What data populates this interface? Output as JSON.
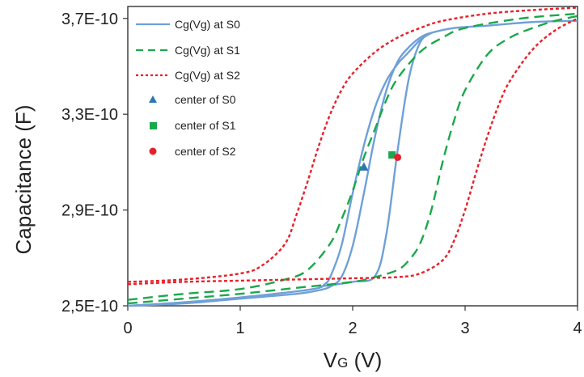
{
  "chart_data": {
    "type": "line",
    "xlabel_main": "V",
    "xlabel_sub": "G",
    "xlabel_unit": " (V)",
    "ylabel": "Capacitance (F)",
    "xlim": [
      0,
      4
    ],
    "ylim": [
      2.5e-10,
      3.75e-10
    ],
    "x_ticks": [
      {
        "value": 0,
        "label": "0"
      },
      {
        "value": 1,
        "label": "1"
      },
      {
        "value": 2,
        "label": "2"
      },
      {
        "value": 3,
        "label": "3"
      },
      {
        "value": 4,
        "label": "4"
      }
    ],
    "y_ticks": [
      {
        "value": 2.5e-10,
        "label": "2,5E-10"
      },
      {
        "value": 2.9e-10,
        "label": "2,9E-10"
      },
      {
        "value": 3.3e-10,
        "label": "3,3E-10"
      },
      {
        "value": 3.7e-10,
        "label": "3,7E-10"
      }
    ],
    "grid": false,
    "legend_position": "top-left",
    "series": [
      {
        "name": "Cg(Vg) at S0",
        "style": "solid",
        "color": "#6fa0d8",
        "segments": [
          {
            "x": [
              0.0,
              0.5,
              1.0,
              1.5,
              1.7,
              1.8,
              1.9,
              2.0,
              2.1,
              2.2,
              2.3,
              2.4,
              2.5,
              2.6,
              2.7,
              2.9,
              3.2,
              3.6,
              4.0
            ],
            "y": [
              2.5e-10,
              2.51e-10,
              2.53e-10,
              2.55e-10,
              2.565e-10,
              2.58e-10,
              2.62e-10,
              2.75e-10,
              2.97e-10,
              3.21e-10,
              3.4e-10,
              3.52e-10,
              3.58e-10,
              3.62e-10,
              3.64e-10,
              3.66e-10,
              3.67e-10,
              3.685e-10,
              3.69e-10
            ]
          },
          {
            "x": [
              0.0,
              0.5,
              1.0,
              1.5,
              1.7,
              1.75,
              1.8,
              1.9,
              2.0,
              2.1,
              2.2,
              2.3,
              2.4,
              2.5,
              2.6,
              2.7
            ],
            "y": [
              2.5e-10,
              2.515e-10,
              2.535e-10,
              2.56e-10,
              2.575e-10,
              2.59e-10,
              2.62e-10,
              2.75e-10,
              2.97e-10,
              3.17e-10,
              3.33e-10,
              3.44e-10,
              3.51e-10,
              3.56e-10,
              3.61e-10,
              3.64e-10
            ]
          },
          {
            "x": [
              1.7,
              2.0,
              2.2,
              2.3,
              2.4,
              2.5,
              2.6,
              2.7
            ],
            "y": [
              2.58e-10,
              2.6e-10,
              2.625e-10,
              2.8e-10,
              3.15e-10,
              3.45e-10,
              3.6e-10,
              3.64e-10
            ]
          }
        ]
      },
      {
        "name": "Cg(Vg) at S1",
        "style": "dashed",
        "color": "#1aa84a",
        "segments": [
          {
            "x": [
              0.0,
              0.5,
              1.0,
              1.4,
              1.6,
              1.8,
              1.9,
              2.0,
              2.1,
              2.2,
              2.3,
              2.4,
              2.6,
              2.8,
              3.0,
              3.5,
              4.0
            ],
            "y": [
              2.525e-10,
              2.55e-10,
              2.57e-10,
              2.61e-10,
              2.65e-10,
              2.76e-10,
              2.86e-10,
              2.98e-10,
              3.12e-10,
              3.24e-10,
              3.36e-10,
              3.45e-10,
              3.56e-10,
              3.62e-10,
              3.66e-10,
              3.7e-10,
              3.72e-10
            ]
          },
          {
            "x": [
              0.0,
              0.5,
              1.0,
              1.5,
              2.0,
              2.2,
              2.4,
              2.5,
              2.6,
              2.7,
              2.8,
              2.9,
              3.0,
              3.2,
              3.4,
              3.6,
              3.8,
              4.0
            ],
            "y": [
              2.51e-10,
              2.53e-10,
              2.55e-10,
              2.575e-10,
              2.6e-10,
              2.62e-10,
              2.65e-10,
              2.69e-10,
              2.76e-10,
              2.9e-10,
              3.1e-10,
              3.27e-10,
              3.4e-10,
              3.55e-10,
              3.62e-10,
              3.66e-10,
              3.69e-10,
              3.71e-10
            ]
          }
        ]
      },
      {
        "name": "Cg(Vg) at S2",
        "style": "dotted",
        "color": "#e8202a",
        "segments": [
          {
            "x": [
              0.0,
              0.5,
              1.0,
              1.2,
              1.4,
              1.5,
              1.6,
              1.7,
              1.8,
              1.9,
              2.0,
              2.2,
              2.4,
              2.6,
              2.8,
              3.2,
              3.6,
              4.0
            ],
            "y": [
              2.6e-10,
              2.61e-10,
              2.635e-10,
              2.67e-10,
              2.76e-10,
              2.88e-10,
              3.02e-10,
              3.17e-10,
              3.3e-10,
              3.4e-10,
              3.47e-10,
              3.56e-10,
              3.62e-10,
              3.66e-10,
              3.69e-10,
              3.72e-10,
              3.735e-10,
              3.745e-10
            ]
          },
          {
            "x": [
              0.0,
              0.5,
              1.0,
              1.5,
              2.0,
              2.4,
              2.6,
              2.8,
              2.9,
              3.0,
              3.1,
              3.2,
              3.3,
              3.4,
              3.6,
              3.8,
              4.0
            ],
            "y": [
              2.59e-10,
              2.6e-10,
              2.605e-10,
              2.61e-10,
              2.615e-10,
              2.62e-10,
              2.635e-10,
              2.69e-10,
              2.77e-10,
              2.9e-10,
              3.06e-10,
              3.21e-10,
              3.34e-10,
              3.44e-10,
              3.57e-10,
              3.65e-10,
              3.7e-10
            ]
          }
        ]
      }
    ],
    "points": [
      {
        "name": "center of S0",
        "marker": "triangle",
        "color": "#2e75b6",
        "x": 2.1,
        "y": 3.08e-10
      },
      {
        "name": "center of S1",
        "marker": "square",
        "color": "#1aa84a",
        "x": 2.35,
        "y": 3.13e-10
      },
      {
        "name": "center of S2",
        "marker": "circle",
        "color": "#e8202a",
        "x": 2.4,
        "y": 3.12e-10
      }
    ]
  }
}
